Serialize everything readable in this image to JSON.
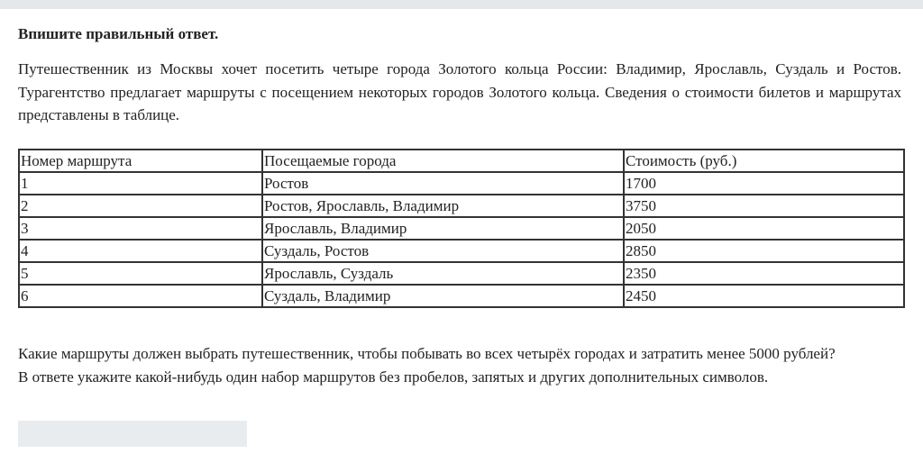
{
  "instruction": "Впишите правильный ответ.",
  "intro": "Путешественник из Москвы хочет посетить четыре города Золотого кольца России: Владимир, Ярославль, Суздаль и Ростов. Турагентство предлагает маршруты с посещением некоторых городов Золотого кольца. Сведения о стоимости билетов и маршрутах представлены в таблице.",
  "table": {
    "headers": [
      "Номер маршрута",
      "Посещаемые города",
      "Стоимость (руб.)"
    ],
    "rows": [
      [
        "1",
        "Ростов",
        "1700"
      ],
      [
        "2",
        "Ростов, Ярославль, Владимир",
        "3750"
      ],
      [
        "3",
        "Ярославль, Владимир",
        "2050"
      ],
      [
        "4",
        "Суздаль, Ростов",
        "2850"
      ],
      [
        "5",
        "Ярославль, Суздаль",
        "2350"
      ],
      [
        "6",
        "Суздаль, Владимир",
        "2450"
      ]
    ]
  },
  "question": {
    "line1": "Какие маршруты должен выбрать путешественник, чтобы побывать во всех четырёх городах и затратить менее 5000 рублей?",
    "line2": "В ответе укажите какой-нибудь один набор маршрутов без пробелов, запятых и других дополнительных символов."
  },
  "answer": {
    "value": ""
  }
}
